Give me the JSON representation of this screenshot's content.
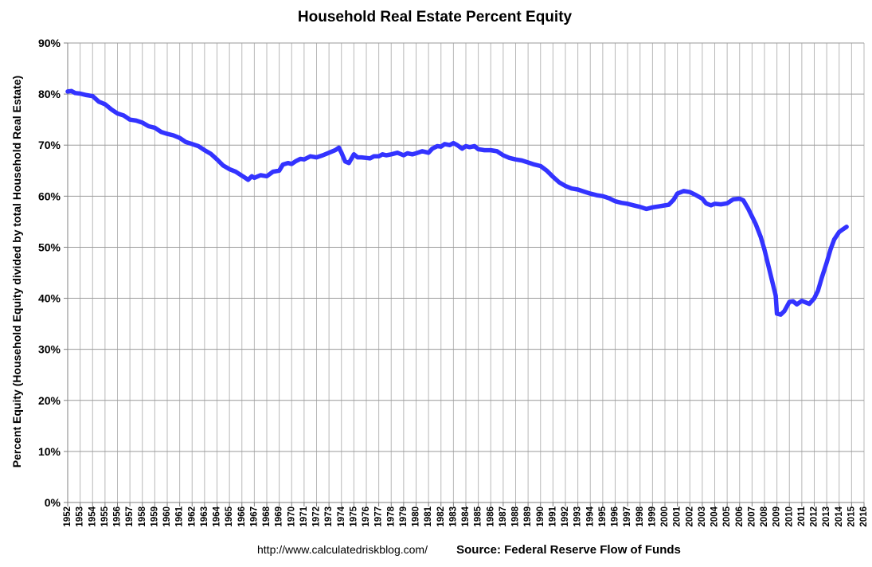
{
  "chart_data": {
    "type": "line",
    "title": "Household Real Estate Percent Equity",
    "ylabel": "Percent Equity (Household Equity divided by total Household Real Estate)",
    "xlabel": "",
    "ylim": [
      0,
      90
    ],
    "xlim": [
      1952,
      2016
    ],
    "y_ticks": [
      0,
      10,
      20,
      30,
      40,
      50,
      60,
      70,
      80,
      90
    ],
    "y_tick_labels": [
      "0%",
      "10%",
      "20%",
      "30%",
      "40%",
      "50%",
      "60%",
      "70%",
      "80%",
      "90%"
    ],
    "x_ticks": [
      1952,
      1953,
      1954,
      1955,
      1956,
      1957,
      1958,
      1959,
      1960,
      1961,
      1962,
      1963,
      1964,
      1965,
      1966,
      1967,
      1968,
      1969,
      1970,
      1971,
      1972,
      1973,
      1974,
      1975,
      1976,
      1977,
      1978,
      1979,
      1980,
      1981,
      1982,
      1983,
      1984,
      1985,
      1986,
      1987,
      1988,
      1989,
      1990,
      1991,
      1992,
      1993,
      1994,
      1995,
      1996,
      1997,
      1998,
      1999,
      2000,
      2001,
      2002,
      2003,
      2004,
      2005,
      2006,
      2007,
      2008,
      2009,
      2010,
      2011,
      2012,
      2013,
      2014,
      2015,
      2016
    ],
    "x_tick_labels": [
      "1952",
      "1953",
      "1954",
      "1955",
      "1956",
      "1957",
      "1958",
      "1959",
      "1960",
      "1961",
      "1962",
      "1963",
      "1964",
      "1965",
      "1966",
      "1967",
      "1968",
      "1969",
      "1970",
      "1971",
      "1972",
      "1973",
      "1974",
      "1975",
      "1976",
      "1977",
      "1978",
      "1979",
      "1980",
      "1981",
      "1982",
      "1983",
      "1984",
      "1985",
      "1986",
      "1987",
      "1988",
      "1989",
      "1990",
      "1991",
      "1992",
      "1993",
      "1994",
      "1995",
      "1996",
      "1997",
      "1998",
      "1999",
      "2000",
      "2001",
      "2002",
      "2003",
      "2004",
      "2005",
      "2006",
      "2007",
      "2008",
      "2009",
      "2010",
      "2011",
      "2012",
      "2013",
      "2014",
      "2015",
      "2016"
    ],
    "grid": true,
    "series": [
      {
        "name": "Household Real Estate Percent Equity",
        "color": "#3333ff",
        "x": [
          1952.0,
          1952.3,
          1952.6,
          1953.0,
          1953.5,
          1954.0,
          1954.5,
          1955.0,
          1955.5,
          1956.0,
          1956.5,
          1957.0,
          1957.5,
          1958.0,
          1958.5,
          1959.0,
          1959.5,
          1960.0,
          1960.5,
          1961.0,
          1961.5,
          1962.0,
          1962.5,
          1963.0,
          1963.5,
          1964.0,
          1964.5,
          1965.0,
          1965.5,
          1966.0,
          1966.2,
          1966.5,
          1966.8,
          1967.0,
          1967.5,
          1968.0,
          1968.5,
          1969.0,
          1969.3,
          1969.7,
          1970.0,
          1970.3,
          1970.7,
          1971.0,
          1971.5,
          1972.0,
          1972.5,
          1973.0,
          1973.5,
          1973.8,
          1974.0,
          1974.3,
          1974.6,
          1975.0,
          1975.3,
          1975.6,
          1976.0,
          1976.3,
          1976.6,
          1977.0,
          1977.3,
          1977.6,
          1978.0,
          1978.5,
          1979.0,
          1979.3,
          1979.7,
          1980.0,
          1980.5,
          1981.0,
          1981.3,
          1981.7,
          1982.0,
          1982.3,
          1982.7,
          1983.0,
          1983.3,
          1983.7,
          1984.0,
          1984.3,
          1984.7,
          1985.0,
          1985.5,
          1986.0,
          1986.5,
          1987.0,
          1987.5,
          1988.0,
          1988.5,
          1989.0,
          1989.5,
          1990.0,
          1990.5,
          1991.0,
          1991.5,
          1992.0,
          1992.5,
          1993.0,
          1993.5,
          1994.0,
          1994.5,
          1995.0,
          1995.5,
          1996.0,
          1996.5,
          1997.0,
          1997.5,
          1998.0,
          1998.5,
          1999.0,
          1999.5,
          2000.0,
          2000.3,
          2000.7,
          2001.0,
          2001.5,
          2002.0,
          2002.5,
          2003.0,
          2003.3,
          2003.7,
          2004.0,
          2004.5,
          2005.0,
          2005.5,
          2006.0,
          2006.3,
          2006.7,
          2007.0,
          2007.3,
          2007.7,
          2008.0,
          2008.3,
          2008.6,
          2008.9,
          2009.0,
          2009.3,
          2009.6,
          2010.0,
          2010.3,
          2010.6,
          2011.0,
          2011.3,
          2011.6,
          2012.0,
          2012.3,
          2012.6,
          2013.0,
          2013.3,
          2013.6,
          2014.0,
          2014.3,
          2014.6
        ],
        "y": [
          80.5,
          80.6,
          80.2,
          80.1,
          79.8,
          79.6,
          78.5,
          78.0,
          77.0,
          76.2,
          75.8,
          75.0,
          74.8,
          74.4,
          73.7,
          73.4,
          72.6,
          72.2,
          71.9,
          71.4,
          70.6,
          70.2,
          69.8,
          69.0,
          68.3,
          67.2,
          66.0,
          65.3,
          64.8,
          64.0,
          63.7,
          63.2,
          63.9,
          63.6,
          64.1,
          63.9,
          64.8,
          65.0,
          66.2,
          66.5,
          66.3,
          66.8,
          67.3,
          67.2,
          67.8,
          67.6,
          68.0,
          68.5,
          69.0,
          69.5,
          68.5,
          66.8,
          66.5,
          68.2,
          67.6,
          67.6,
          67.5,
          67.4,
          67.8,
          67.8,
          68.2,
          68.0,
          68.2,
          68.5,
          68.0,
          68.4,
          68.2,
          68.4,
          68.8,
          68.5,
          69.3,
          69.8,
          69.7,
          70.2,
          70.0,
          70.4,
          70.0,
          69.3,
          69.8,
          69.6,
          69.8,
          69.2,
          69.0,
          69.0,
          68.8,
          68.0,
          67.5,
          67.2,
          67.0,
          66.6,
          66.2,
          65.9,
          65.0,
          63.8,
          62.7,
          62.0,
          61.5,
          61.3,
          60.9,
          60.5,
          60.2,
          60.0,
          59.6,
          59.0,
          58.7,
          58.5,
          58.2,
          57.9,
          57.5,
          57.8,
          58.0,
          58.2,
          58.3,
          59.3,
          60.5,
          61.0,
          60.8,
          60.2,
          59.5,
          58.6,
          58.2,
          58.5,
          58.4,
          58.6,
          59.4,
          59.5,
          59.2,
          57.5,
          56.0,
          54.5,
          52.0,
          49.5,
          46.5,
          43.5,
          40.5,
          37.0,
          36.8,
          37.5,
          39.3,
          39.4,
          38.8,
          39.5,
          39.2,
          38.9,
          40.0,
          41.5,
          44.0,
          47.0,
          49.5,
          51.5,
          53.0,
          53.5,
          54.0
        ]
      }
    ],
    "footer_url": "http://www.calculatedriskblog.com/",
    "source": "Source: Federal Reserve Flow of Funds"
  }
}
